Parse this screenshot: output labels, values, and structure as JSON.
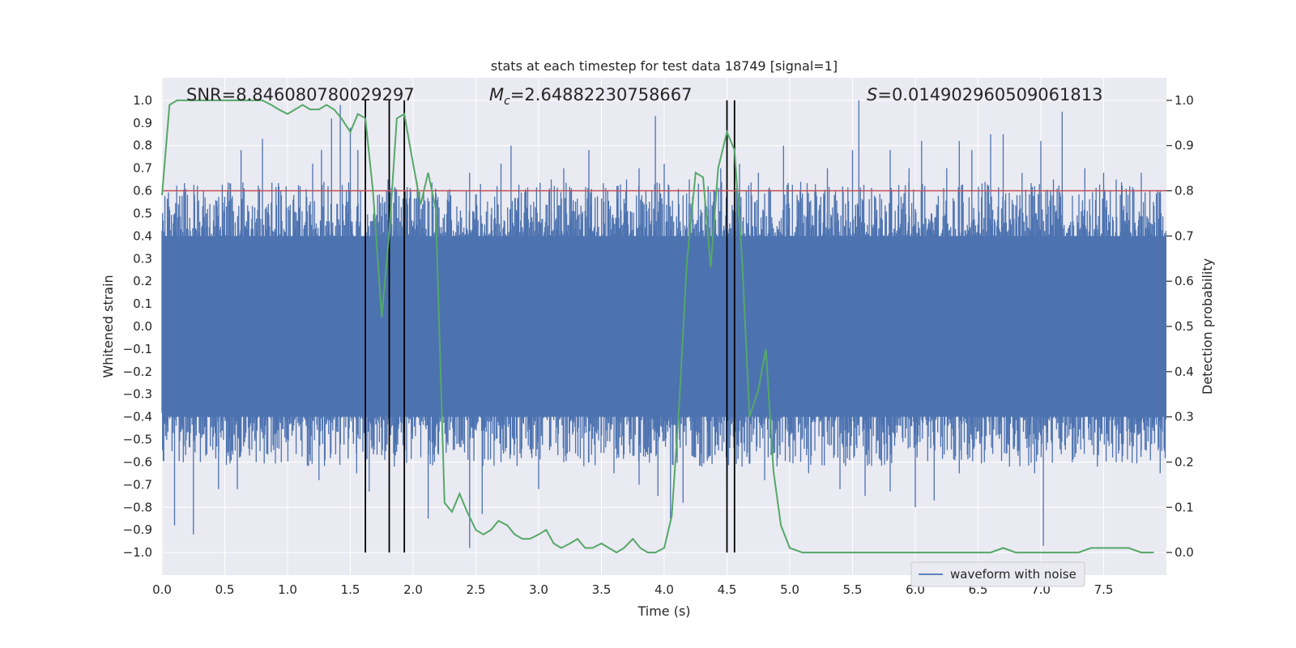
{
  "chart_data": {
    "type": "line",
    "title": "stats at each timestep for test data 18749 [signal=1]",
    "xlabel": "Time (s)",
    "ylabel_left": "Whitened strain",
    "ylabel_right": "Detection probability",
    "xlim": [
      0.0,
      8.0
    ],
    "ylim_left": [
      -1.1,
      1.1
    ],
    "ylim_right": [
      -0.05,
      1.05
    ],
    "x_ticks": [
      "0.0",
      "0.5",
      "1.0",
      "1.5",
      "2.0",
      "2.5",
      "3.0",
      "3.5",
      "4.0",
      "4.5",
      "5.0",
      "5.5",
      "6.0",
      "6.5",
      "7.0",
      "7.5"
    ],
    "y_ticks_left": [
      "1.0",
      "0.9",
      "0.8",
      "0.7",
      "0.6",
      "0.5",
      "0.4",
      "0.3",
      "0.2",
      "0.1",
      "0.0",
      "−0.1",
      "−0.2",
      "−0.3",
      "−0.4",
      "−0.5",
      "−0.6",
      "−0.7",
      "−0.8",
      "−0.9",
      "−1.0"
    ],
    "y_ticks_right": [
      "1.0",
      "0.9",
      "0.8",
      "0.7",
      "0.6",
      "0.5",
      "0.4",
      "0.3",
      "0.2",
      "0.1",
      "0.0"
    ],
    "annotations": {
      "snr": "SNR=8.846080780029297",
      "mc_symbol": "M",
      "mc_sub": "c",
      "mc_value": "=2.64882230758667",
      "s_symbol": "S",
      "s_value": "=0.014902960509061813"
    },
    "legend": {
      "label": "waveform with noise",
      "loc": "lower right"
    },
    "threshold": {
      "value": 0.8,
      "color": "#c44e52"
    },
    "vertical_lines": [
      1.62,
      1.81,
      1.93,
      4.5,
      4.56
    ],
    "waveform": {
      "name": "waveform with noise",
      "color": "#4c72b0",
      "band": 0.4,
      "peaks": [
        [
          0.1,
          0.5
        ],
        [
          0.26,
          0.55
        ],
        [
          0.33,
          0.6
        ],
        [
          0.44,
          0.53
        ],
        [
          0.63,
          0.78
        ],
        [
          0.8,
          0.83
        ],
        [
          0.95,
          0.58
        ],
        [
          1.1,
          0.62
        ],
        [
          1.2,
          0.72
        ],
        [
          1.27,
          0.78
        ],
        [
          1.35,
          0.92
        ],
        [
          1.42,
          0.98
        ],
        [
          1.5,
          0.88
        ],
        [
          1.56,
          0.78
        ],
        [
          1.8,
          0.65
        ],
        [
          1.95,
          0.55
        ],
        [
          2.15,
          0.6
        ],
        [
          2.3,
          0.58
        ],
        [
          2.45,
          0.68
        ],
        [
          2.7,
          0.72
        ],
        [
          2.78,
          0.8
        ],
        [
          2.9,
          0.6
        ],
        [
          3.1,
          0.65
        ],
        [
          3.2,
          0.7
        ],
        [
          3.4,
          0.78
        ],
        [
          3.55,
          0.6
        ],
        [
          3.7,
          0.65
        ],
        [
          3.8,
          0.7
        ],
        [
          3.93,
          0.93
        ],
        [
          4.0,
          0.72
        ],
        [
          4.2,
          0.65
        ],
        [
          4.35,
          0.62
        ],
        [
          4.45,
          0.7
        ],
        [
          4.6,
          0.72
        ],
        [
          4.75,
          0.68
        ],
        [
          4.95,
          0.8
        ],
        [
          5.2,
          0.6
        ],
        [
          5.3,
          0.7
        ],
        [
          5.5,
          0.78
        ],
        [
          5.55,
          1.0
        ],
        [
          5.8,
          0.78
        ],
        [
          5.95,
          0.7
        ],
        [
          6.05,
          0.82
        ],
        [
          6.25,
          0.7
        ],
        [
          6.35,
          0.82
        ],
        [
          6.45,
          0.78
        ],
        [
          6.6,
          0.85
        ],
        [
          6.7,
          0.85
        ],
        [
          6.85,
          0.68
        ],
        [
          7.0,
          0.82
        ],
        [
          7.1,
          0.65
        ],
        [
          7.17,
          0.95
        ],
        [
          7.35,
          0.7
        ],
        [
          7.5,
          0.68
        ],
        [
          7.6,
          0.65
        ],
        [
          7.8,
          0.68
        ],
        [
          7.95,
          0.6
        ]
      ],
      "troughs": [
        [
          0.1,
          -0.55
        ],
        [
          0.1,
          -0.88
        ],
        [
          0.17,
          -0.6
        ],
        [
          0.25,
          -0.92
        ],
        [
          0.45,
          -0.72
        ],
        [
          0.6,
          -0.72
        ],
        [
          0.75,
          -0.6
        ],
        [
          0.95,
          -0.6
        ],
        [
          1.25,
          -0.68
        ],
        [
          1.55,
          -0.65
        ],
        [
          1.65,
          -0.73
        ],
        [
          1.85,
          -0.62
        ],
        [
          2.12,
          -0.85
        ],
        [
          2.45,
          -0.98
        ],
        [
          2.55,
          -0.83
        ],
        [
          2.7,
          -0.6
        ],
        [
          3.0,
          -0.72
        ],
        [
          3.2,
          -0.6
        ],
        [
          3.4,
          -0.6
        ],
        [
          3.6,
          -0.65
        ],
        [
          3.8,
          -0.7
        ],
        [
          3.95,
          -0.75
        ],
        [
          4.05,
          -0.85
        ],
        [
          4.15,
          -0.78
        ],
        [
          4.3,
          -0.62
        ],
        [
          4.5,
          -0.7
        ],
        [
          4.62,
          -0.62
        ],
        [
          4.8,
          -0.68
        ],
        [
          5.0,
          -0.6
        ],
        [
          5.15,
          -0.65
        ],
        [
          5.4,
          -0.72
        ],
        [
          5.6,
          -0.75
        ],
        [
          5.8,
          -0.73
        ],
        [
          6.0,
          -0.8
        ],
        [
          6.15,
          -0.77
        ],
        [
          6.35,
          -0.65
        ],
        [
          6.55,
          -0.6
        ],
        [
          6.75,
          -0.62
        ],
        [
          6.95,
          -0.65
        ],
        [
          7.02,
          -0.97
        ],
        [
          7.25,
          -0.6
        ],
        [
          7.45,
          -0.62
        ],
        [
          7.6,
          -0.6
        ],
        [
          7.8,
          -0.55
        ],
        [
          7.95,
          -0.65
        ]
      ]
    },
    "probability": {
      "name": "detection probability",
      "color": "#55a868",
      "x": [
        0.0,
        0.06,
        0.12,
        0.2,
        0.3,
        0.4,
        0.5,
        0.6,
        0.7,
        0.8,
        0.87,
        0.93,
        1.0,
        1.06,
        1.12,
        1.18,
        1.25,
        1.31,
        1.37,
        1.43,
        1.5,
        1.56,
        1.62,
        1.68,
        1.75,
        1.81,
        1.87,
        1.93,
        2.0,
        2.06,
        2.12,
        2.18,
        2.25,
        2.31,
        2.37,
        2.43,
        2.5,
        2.56,
        2.62,
        2.68,
        2.75,
        2.81,
        2.87,
        2.93,
        3.0,
        3.06,
        3.12,
        3.18,
        3.25,
        3.31,
        3.37,
        3.43,
        3.5,
        3.56,
        3.62,
        3.68,
        3.75,
        3.81,
        3.87,
        3.93,
        4.0,
        4.06,
        4.12,
        4.18,
        4.25,
        4.31,
        4.37,
        4.43,
        4.5,
        4.56,
        4.62,
        4.68,
        4.75,
        4.81,
        4.87,
        4.93,
        5.0,
        5.1,
        5.2,
        5.3,
        5.4,
        5.5,
        5.6,
        5.7,
        5.8,
        6.0,
        6.2,
        6.4,
        6.6,
        6.7,
        6.8,
        6.9,
        7.0,
        7.1,
        7.2,
        7.3,
        7.4,
        7.5,
        7.6,
        7.7,
        7.8,
        7.9
      ],
      "values": [
        0.79,
        0.99,
        1.0,
        1.0,
        1.0,
        1.0,
        1.0,
        1.0,
        1.0,
        1.0,
        0.99,
        0.98,
        0.97,
        0.98,
        0.99,
        0.98,
        0.98,
        0.99,
        0.98,
        0.96,
        0.93,
        0.97,
        0.96,
        0.8,
        0.52,
        0.71,
        0.96,
        0.97,
        0.86,
        0.77,
        0.84,
        0.76,
        0.11,
        0.09,
        0.13,
        0.09,
        0.05,
        0.04,
        0.05,
        0.07,
        0.06,
        0.04,
        0.03,
        0.03,
        0.04,
        0.05,
        0.02,
        0.01,
        0.02,
        0.03,
        0.01,
        0.01,
        0.02,
        0.01,
        0.0,
        0.01,
        0.03,
        0.01,
        0.0,
        0.0,
        0.01,
        0.08,
        0.33,
        0.64,
        0.84,
        0.83,
        0.63,
        0.85,
        0.93,
        0.89,
        0.65,
        0.3,
        0.36,
        0.45,
        0.18,
        0.06,
        0.01,
        0.0,
        0.0,
        0.0,
        0.0,
        0.0,
        0.0,
        0.0,
        0.0,
        0.0,
        0.0,
        0.0,
        0.0,
        0.01,
        0.0,
        0.0,
        0.0,
        0.0,
        0.0,
        0.0,
        0.01,
        0.01,
        0.01,
        0.01,
        0.0,
        0.0
      ]
    }
  }
}
